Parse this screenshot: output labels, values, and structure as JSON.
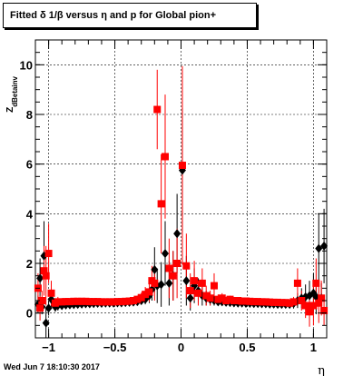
{
  "title": "Fitted δ 1/β versus η and p for Global pion+",
  "timestamp": "Wed Jun  7 18:10:30 2017",
  "chart_data": {
    "type": "scatter",
    "xlabel": "η",
    "ylabel": "Z_dBetainv",
    "xlim": [
      -1.1,
      1.1
    ],
    "ylim": [
      -1.0,
      11.0
    ],
    "x_ticks": [
      -1,
      -0.5,
      0,
      0.5,
      1
    ],
    "x_tick_labels": [
      "−1",
      "−0.5",
      "0",
      "0.5",
      "1"
    ],
    "y_ticks": [
      0,
      2,
      4,
      6,
      8,
      10
    ],
    "y_tick_labels": [
      "0",
      "2",
      "4",
      "6",
      "8",
      "10"
    ],
    "marker_size_px": 8,
    "series": [
      {
        "color": "#000000",
        "marker": "diamond",
        "points": [
          [
            -1.08,
            0.35,
            0.35
          ],
          [
            -1.065,
            1.4,
            0.8
          ],
          [
            -1.05,
            0.25,
            0.3
          ],
          [
            -1.035,
            2.3,
            1.4
          ],
          [
            -1.02,
            -0.4,
            0.6
          ],
          [
            -1.0,
            0.2,
            0.3
          ],
          [
            -0.98,
            0.55,
            0.3
          ],
          [
            -0.95,
            0.25,
            0.2
          ],
          [
            -0.93,
            0.3,
            0.2
          ],
          [
            -0.9,
            0.3,
            0.15
          ],
          [
            -0.87,
            0.32,
            0.15
          ],
          [
            -0.84,
            0.33,
            0.12
          ],
          [
            -0.81,
            0.34,
            0.12
          ],
          [
            -0.78,
            0.35,
            0.1
          ],
          [
            -0.75,
            0.36,
            0.1
          ],
          [
            -0.72,
            0.37,
            0.1
          ],
          [
            -0.69,
            0.37,
            0.1
          ],
          [
            -0.66,
            0.38,
            0.1
          ],
          [
            -0.63,
            0.39,
            0.1
          ],
          [
            -0.6,
            0.39,
            0.1
          ],
          [
            -0.57,
            0.4,
            0.1
          ],
          [
            -0.54,
            0.4,
            0.1
          ],
          [
            -0.51,
            0.4,
            0.1
          ],
          [
            -0.48,
            0.41,
            0.1
          ],
          [
            -0.45,
            0.41,
            0.1
          ],
          [
            -0.42,
            0.42,
            0.1
          ],
          [
            -0.39,
            0.43,
            0.1
          ],
          [
            -0.36,
            0.44,
            0.1
          ],
          [
            -0.33,
            0.46,
            0.12
          ],
          [
            -0.3,
            0.5,
            0.15
          ],
          [
            -0.27,
            0.55,
            0.2
          ],
          [
            -0.24,
            0.7,
            0.3
          ],
          [
            -0.22,
            0.95,
            0.45
          ],
          [
            -0.2,
            1.75,
            0.9
          ],
          [
            -0.18,
            1.1,
            0.7
          ],
          [
            -0.15,
            1.15,
            0.9
          ],
          [
            -0.12,
            2.4,
            1.3
          ],
          [
            -0.09,
            1.2,
            0.9
          ],
          [
            -0.06,
            1.5,
            1.0
          ],
          [
            -0.03,
            3.2,
            1.6
          ],
          [
            0.01,
            5.75,
            2.5
          ],
          [
            0.04,
            1.3,
            1.0
          ],
          [
            0.07,
            0.6,
            0.5
          ],
          [
            0.1,
            1.1,
            0.7
          ],
          [
            0.13,
            0.9,
            0.5
          ],
          [
            0.16,
            0.7,
            0.4
          ],
          [
            0.19,
            0.6,
            0.3
          ],
          [
            0.22,
            0.55,
            0.25
          ],
          [
            0.25,
            0.5,
            0.2
          ],
          [
            0.28,
            0.45,
            0.15
          ],
          [
            0.31,
            0.45,
            0.12
          ],
          [
            0.34,
            0.43,
            0.12
          ],
          [
            0.37,
            0.42,
            0.1
          ],
          [
            0.4,
            0.41,
            0.1
          ],
          [
            0.43,
            0.4,
            0.1
          ],
          [
            0.46,
            0.4,
            0.1
          ],
          [
            0.49,
            0.39,
            0.1
          ],
          [
            0.52,
            0.39,
            0.1
          ],
          [
            0.55,
            0.38,
            0.1
          ],
          [
            0.58,
            0.38,
            0.1
          ],
          [
            0.61,
            0.37,
            0.1
          ],
          [
            0.64,
            0.37,
            0.1
          ],
          [
            0.67,
            0.36,
            0.1
          ],
          [
            0.7,
            0.36,
            0.1
          ],
          [
            0.73,
            0.35,
            0.1
          ],
          [
            0.76,
            0.35,
            0.12
          ],
          [
            0.79,
            0.35,
            0.12
          ],
          [
            0.82,
            0.35,
            0.15
          ],
          [
            0.85,
            0.38,
            0.2
          ],
          [
            0.88,
            0.5,
            0.3
          ],
          [
            0.91,
            0.6,
            0.4
          ],
          [
            0.94,
            0.65,
            0.5
          ],
          [
            0.97,
            0.7,
            0.6
          ],
          [
            1.0,
            0.8,
            0.8
          ],
          [
            1.02,
            0.65,
            0.7
          ],
          [
            1.04,
            2.6,
            1.4
          ],
          [
            1.06,
            0.6,
            0.6
          ],
          [
            1.08,
            2.7,
            1.5
          ]
        ]
      },
      {
        "color": "#ff0000",
        "marker": "square",
        "points": [
          [
            -1.08,
            1.0,
            0.6
          ],
          [
            -1.065,
            0.2,
            0.5
          ],
          [
            -1.05,
            0.5,
            0.4
          ],
          [
            -1.035,
            1.7,
            1.0
          ],
          [
            -1.02,
            1.5,
            1.2
          ],
          [
            -1.0,
            2.4,
            1.2
          ],
          [
            -0.98,
            0.8,
            0.5
          ],
          [
            -0.95,
            0.4,
            0.2
          ],
          [
            -0.93,
            0.45,
            0.2
          ],
          [
            -0.9,
            0.45,
            0.15
          ],
          [
            -0.87,
            0.46,
            0.15
          ],
          [
            -0.84,
            0.46,
            0.12
          ],
          [
            -0.81,
            0.47,
            0.12
          ],
          [
            -0.78,
            0.47,
            0.1
          ],
          [
            -0.75,
            0.47,
            0.1
          ],
          [
            -0.72,
            0.47,
            0.1
          ],
          [
            -0.69,
            0.46,
            0.1
          ],
          [
            -0.66,
            0.46,
            0.1
          ],
          [
            -0.63,
            0.46,
            0.1
          ],
          [
            -0.6,
            0.45,
            0.1
          ],
          [
            -0.57,
            0.45,
            0.1
          ],
          [
            -0.54,
            0.45,
            0.1
          ],
          [
            -0.51,
            0.45,
            0.1
          ],
          [
            -0.48,
            0.46,
            0.1
          ],
          [
            -0.45,
            0.46,
            0.1
          ],
          [
            -0.42,
            0.47,
            0.1
          ],
          [
            -0.39,
            0.48,
            0.1
          ],
          [
            -0.36,
            0.5,
            0.12
          ],
          [
            -0.33,
            0.55,
            0.15
          ],
          [
            -0.3,
            0.62,
            0.2
          ],
          [
            -0.27,
            0.75,
            0.3
          ],
          [
            -0.24,
            0.85,
            0.4
          ],
          [
            -0.22,
            1.3,
            0.6
          ],
          [
            -0.2,
            1.2,
            0.7
          ],
          [
            -0.18,
            8.2,
            1.6
          ],
          [
            -0.15,
            4.4,
            2.0
          ],
          [
            -0.12,
            6.3,
            2.5
          ],
          [
            -0.09,
            1.8,
            1.2
          ],
          [
            -0.06,
            1.5,
            1.0
          ],
          [
            -0.03,
            2.0,
            1.4
          ],
          [
            0.01,
            5.95,
            4.0
          ],
          [
            0.04,
            1.9,
            1.3
          ],
          [
            0.07,
            0.9,
            0.7
          ],
          [
            0.1,
            1.3,
            0.8
          ],
          [
            0.13,
            0.8,
            0.5
          ],
          [
            0.16,
            1.2,
            0.6
          ],
          [
            0.19,
            0.7,
            0.4
          ],
          [
            0.22,
            0.6,
            0.3
          ],
          [
            0.25,
            1.1,
            0.5
          ],
          [
            0.28,
            0.55,
            0.2
          ],
          [
            0.31,
            0.6,
            0.2
          ],
          [
            0.34,
            0.5,
            0.15
          ],
          [
            0.37,
            0.55,
            0.15
          ],
          [
            0.4,
            0.5,
            0.12
          ],
          [
            0.43,
            0.5,
            0.12
          ],
          [
            0.46,
            0.48,
            0.1
          ],
          [
            0.49,
            0.48,
            0.1
          ],
          [
            0.52,
            0.47,
            0.1
          ],
          [
            0.55,
            0.46,
            0.1
          ],
          [
            0.58,
            0.46,
            0.1
          ],
          [
            0.61,
            0.45,
            0.1
          ],
          [
            0.64,
            0.45,
            0.1
          ],
          [
            0.67,
            0.44,
            0.1
          ],
          [
            0.7,
            0.43,
            0.1
          ],
          [
            0.73,
            0.43,
            0.1
          ],
          [
            0.76,
            0.42,
            0.12
          ],
          [
            0.79,
            0.42,
            0.12
          ],
          [
            0.82,
            0.4,
            0.15
          ],
          [
            0.85,
            0.45,
            0.2
          ],
          [
            0.88,
            1.2,
            0.6
          ],
          [
            0.91,
            0.5,
            0.4
          ],
          [
            0.94,
            0.3,
            0.5
          ],
          [
            0.97,
            0.05,
            0.6
          ],
          [
            1.0,
            0.3,
            0.8
          ],
          [
            1.02,
            1.2,
            1.0
          ],
          [
            1.04,
            0.4,
            0.8
          ],
          [
            1.06,
            0.6,
            0.7
          ],
          [
            1.08,
            0.1,
            0.6
          ]
        ]
      }
    ]
  }
}
